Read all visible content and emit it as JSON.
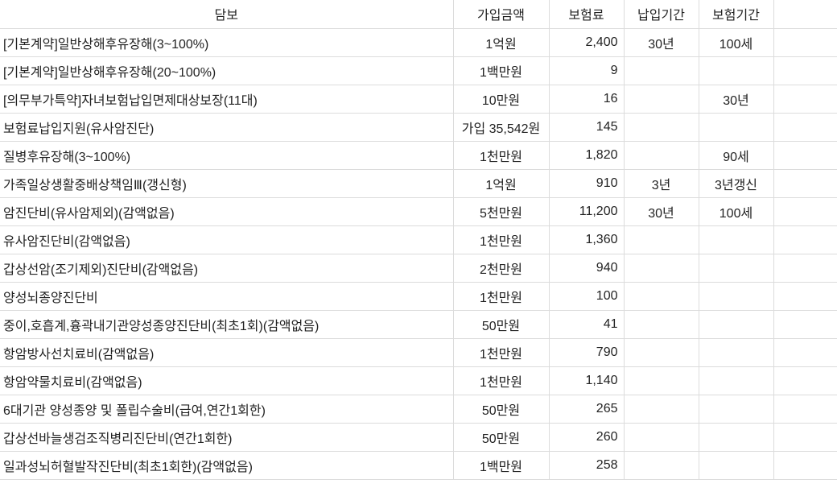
{
  "table": {
    "headers": [
      "담보",
      "가입금액",
      "보험료",
      "납입기간",
      "보험기간",
      ""
    ],
    "rows": [
      [
        "[기본계약]일반상해후유장해(3~100%)",
        "1억원",
        "2,400",
        "30년",
        "100세"
      ],
      [
        "[기본계약]일반상해후유장해(20~100%)",
        "1백만원",
        "9",
        "",
        ""
      ],
      [
        "[의무부가특약]자녀보험납입면제대상보장(11대)",
        "10만원",
        "16",
        "",
        "30년"
      ],
      [
        "보험료납입지원(유사암진단)",
        "가입 35,542원",
        "145",
        "",
        ""
      ],
      [
        "질병후유장해(3~100%)",
        "1천만원",
        "1,820",
        "",
        "90세"
      ],
      [
        "가족일상생활중배상책임Ⅲ(갱신형)",
        "1억원",
        "910",
        "3년",
        "3년갱신"
      ],
      [
        "암진단비(유사암제외)(감액없음)",
        "5천만원",
        "11,200",
        "30년",
        "100세"
      ],
      [
        "유사암진단비(감액없음)",
        "1천만원",
        "1,360",
        "",
        ""
      ],
      [
        "갑상선암(조기제외)진단비(감액없음)",
        "2천만원",
        "940",
        "",
        ""
      ],
      [
        "양성뇌종양진단비",
        "1천만원",
        "100",
        "",
        ""
      ],
      [
        "중이,호흡계,흉곽내기관양성종양진단비(최초1회)(감액없음)",
        "50만원",
        "41",
        "",
        ""
      ],
      [
        "항암방사선치료비(감액없음)",
        "1천만원",
        "790",
        "",
        ""
      ],
      [
        "항암약물치료비(감액없음)",
        "1천만원",
        "1,140",
        "",
        ""
      ],
      [
        "6대기관 양성종양 및 폴립수술비(급여,연간1회한)",
        "50만원",
        "265",
        "",
        ""
      ],
      [
        "갑상선바늘생검조직병리진단비(연간1회한)",
        "50만원",
        "260",
        "",
        ""
      ],
      [
        "일과성뇌허혈발작진단비(최초1회한)(감액없음)",
        "1백만원",
        "258",
        "",
        ""
      ]
    ]
  }
}
